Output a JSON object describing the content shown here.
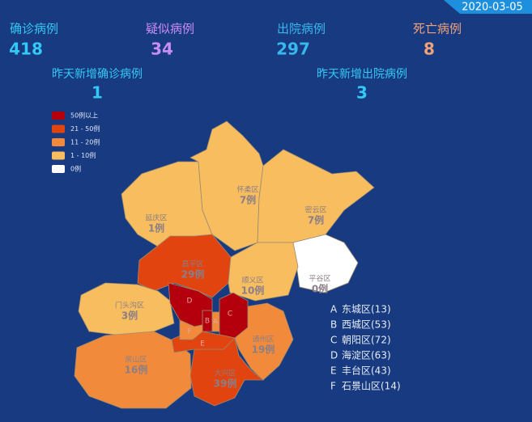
{
  "date": "2020-03-05",
  "stats": [
    {
      "label": "确诊病例",
      "value": 418,
      "color": "#35c8f5"
    },
    {
      "label": "疑似病例",
      "value": 34,
      "color": "#c98cf7"
    },
    {
      "label": "出院病例",
      "value": 297,
      "color": "#39b8ee"
    },
    {
      "label": "死亡病例",
      "value": 8,
      "color": "#f2a27a"
    }
  ],
  "new_stats": [
    {
      "label": "昨天新增确诊病例",
      "value": 1
    },
    {
      "label": "昨天新增出院病例",
      "value": 3
    }
  ],
  "legend": [
    {
      "label": "50例以上",
      "color": "#b3000c"
    },
    {
      "label": "21 - 50例",
      "color": "#e2440f"
    },
    {
      "label": "11 - 20例",
      "color": "#f18b3b"
    },
    {
      "label": "1 - 10例",
      "color": "#f8bd5f"
    },
    {
      "label": "0例",
      "color": "#ffffff"
    }
  ],
  "districts": [
    {
      "name": "延庆区",
      "cases": "1例",
      "color": "#f8bd5f"
    },
    {
      "name": "怀柔区",
      "cases": "7例",
      "color": "#f8bd5f"
    },
    {
      "name": "密云区",
      "cases": "7例",
      "color": "#f8bd5f"
    },
    {
      "name": "平谷区",
      "cases": "0例",
      "color": "#ffffff"
    },
    {
      "name": "昌平区",
      "cases": "29例",
      "color": "#e2440f"
    },
    {
      "name": "顺义区",
      "cases": "10例",
      "color": "#f8bd5f"
    },
    {
      "name": "门头沟区",
      "cases": "3例",
      "color": "#f8bd5f"
    },
    {
      "name": "房山区",
      "cases": "16例",
      "color": "#f18b3b"
    },
    {
      "name": "通州区",
      "cases": "19例",
      "color": "#f18b3b"
    },
    {
      "name": "大兴区",
      "cases": "39例",
      "color": "#e2440f"
    }
  ],
  "inner_districts": [
    {
      "letter": "A",
      "text": "东城区(13)",
      "color": "#f18b3b"
    },
    {
      "letter": "B",
      "text": "西城区(53)",
      "color": "#b3000c"
    },
    {
      "letter": "C",
      "text": "朝阳区(72)",
      "color": "#b3000c"
    },
    {
      "letter": "D",
      "text": "海淀区(63)",
      "color": "#b3000c"
    },
    {
      "letter": "E",
      "text": "丰台区(43)",
      "color": "#e2440f"
    },
    {
      "letter": "F",
      "text": "石景山区(14)",
      "color": "#f18b3b"
    }
  ]
}
